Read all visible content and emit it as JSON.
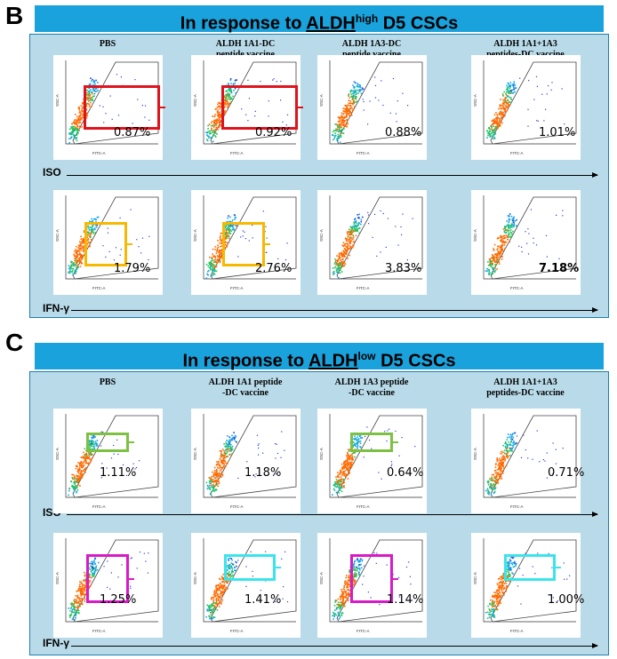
{
  "panels": [
    {
      "letter": "B",
      "banner": {
        "prefix": "In response to ",
        "marker": "ALDH",
        "sup": "high",
        "suffix": " D5 CSCs"
      },
      "columns": [
        "PBS",
        "ALDH 1A1-DC\npeptide vaccine",
        "ALDH 1A3-DC\npeptide vaccine",
        "ALDH 1A1+1A3\npeptides-DC vaccine"
      ],
      "rows": [
        {
          "label": "ISO",
          "values": [
            "0.87%",
            "0.92%",
            "0.88%",
            "1.01%"
          ],
          "gate_colors": [
            "#e0121c",
            "#e0121c",
            null,
            null
          ]
        },
        {
          "label": "IFN-γ",
          "values": [
            "1.79%",
            "2.76%",
            "3.83%",
            "7.18%"
          ],
          "gate_colors": [
            "#f6b800",
            "#f6b800",
            null,
            null
          ]
        }
      ]
    },
    {
      "letter": "C",
      "banner": {
        "prefix": "In response to ",
        "marker": "ALDH",
        "sup": "low",
        "suffix": " D5 CSCs"
      },
      "columns": [
        "PBS",
        "ALDH 1A1 peptide\n-DC vaccine",
        "ALDH 1A3 peptide\n-DC vaccine",
        "ALDH 1A1+1A3\npeptides-DC vaccine"
      ],
      "rows": [
        {
          "label": "ISO",
          "values": [
            "1.11%",
            "1.18%",
            "0.64%",
            "0.71%"
          ],
          "gate_colors": [
            "#7dc142",
            null,
            "#7dc142",
            null
          ]
        },
        {
          "label": "IFN-γ",
          "values": [
            "1.25%",
            "1.41%",
            "1.14%",
            "1.00%"
          ],
          "gate_colors": [
            "#d81ac8",
            "#3ae4ec",
            "#d81ac8",
            "#3ae4ec"
          ]
        }
      ]
    }
  ],
  "axis_labels": {
    "x": "FITC-A",
    "y": "SSC-A"
  }
}
